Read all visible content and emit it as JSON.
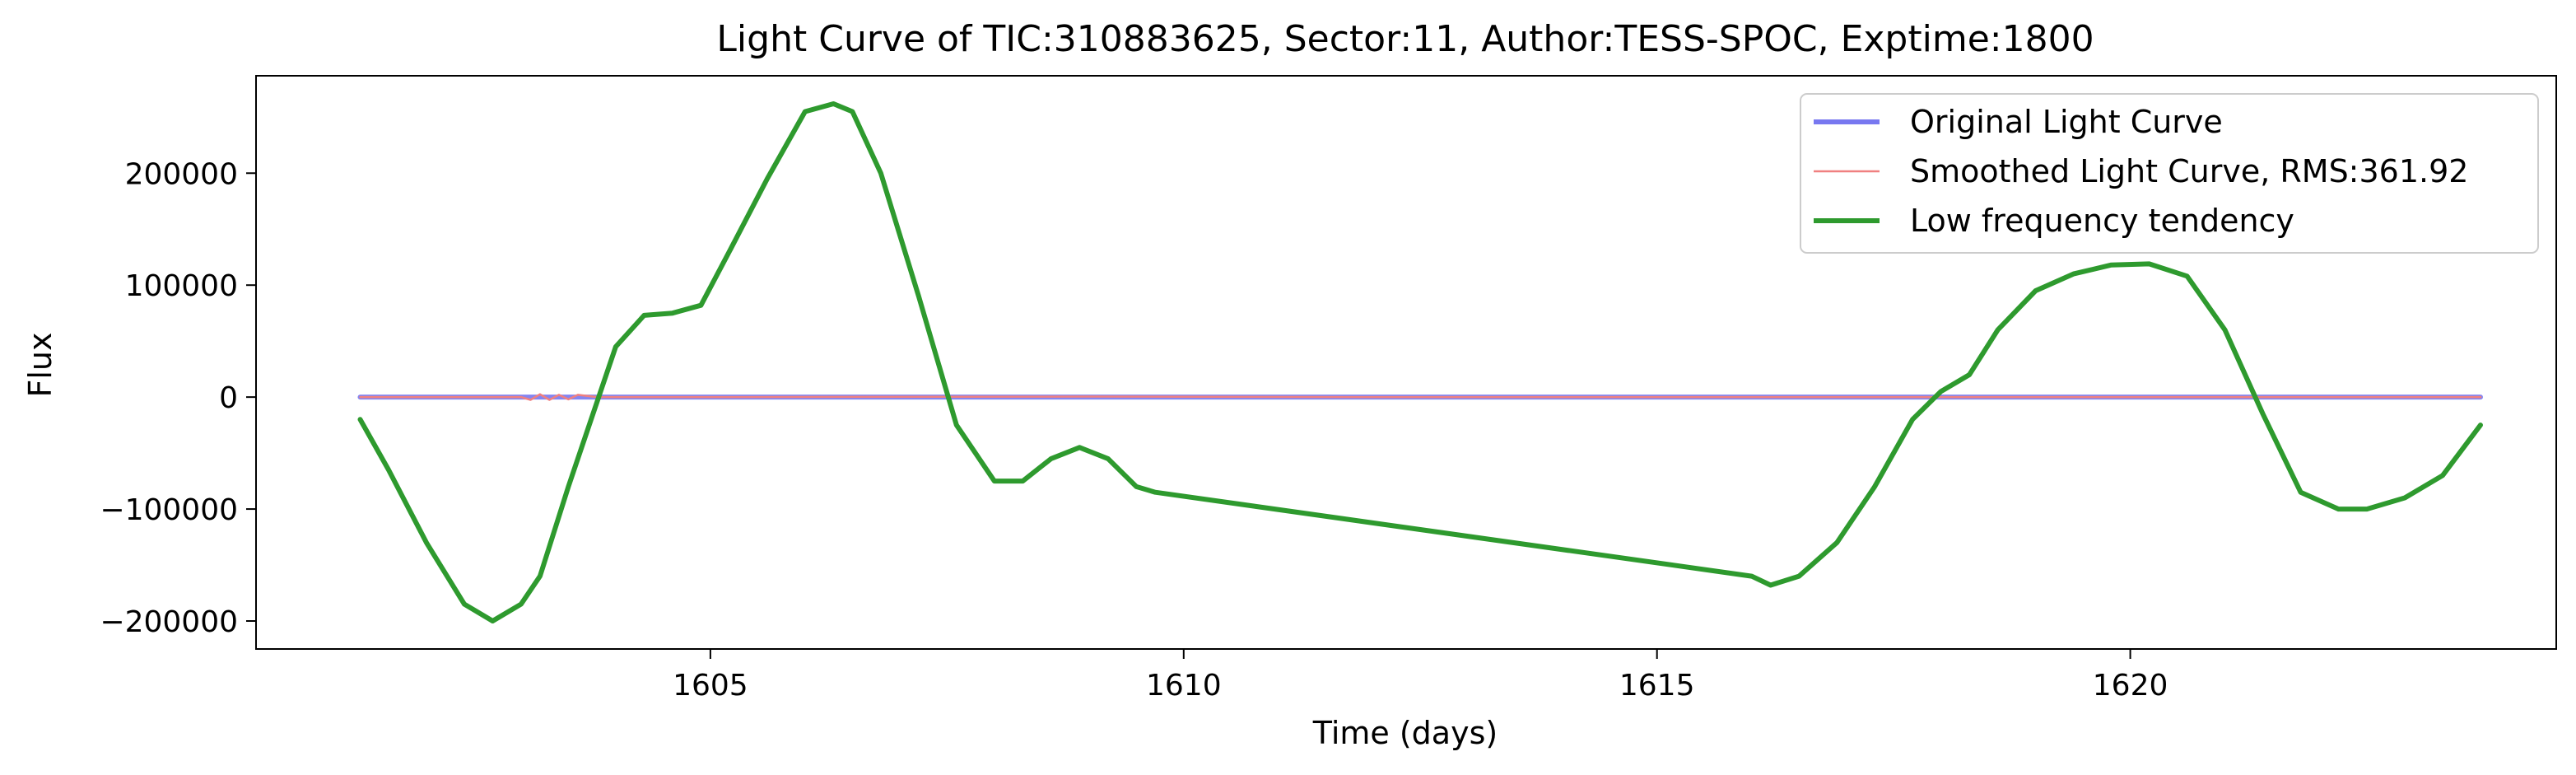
{
  "chart_data": {
    "type": "line",
    "title": "Light Curve of TIC:310883625, Sector:11, Author:TESS-SPOC, Exptime:1800",
    "xlabel": "Time (days)",
    "ylabel": "Flux",
    "xlim": [
      1600.2,
      1624.5
    ],
    "ylim": [
      -225000,
      287000
    ],
    "xticks": [
      1605,
      1610,
      1615,
      1620
    ],
    "xtick_labels": [
      "1605",
      "1610",
      "1615",
      "1620"
    ],
    "yticks": [
      -200000,
      -100000,
      0,
      100000,
      200000
    ],
    "ytick_labels": [
      "−200000",
      "−100000",
      "0",
      "100000",
      "200000"
    ],
    "grid": false,
    "legend_position": "top-right",
    "series": [
      {
        "name": "Original Light Curve",
        "color": "#7878f0",
        "x": [
          1601.3,
          1623.7
        ],
        "y": [
          0,
          0
        ]
      },
      {
        "name": "Smoothed Light Curve, RMS:361.92",
        "color": "#f08080",
        "x": [
          1601.3,
          1602.5,
          1603.0,
          1603.1,
          1603.2,
          1603.3,
          1603.4,
          1603.5,
          1603.6,
          1603.8,
          1604.2,
          1605.0,
          1609.0,
          1612.0,
          1617.0,
          1620.0,
          1623.7
        ],
        "y": [
          0,
          0,
          0,
          -2500,
          2500,
          -2500,
          2000,
          -2000,
          2000,
          0,
          0,
          0,
          500,
          0,
          0,
          0,
          0
        ]
      },
      {
        "name": "Low frequency tendency",
        "color": "#2e9a2e",
        "x": [
          1601.3,
          1601.6,
          1602.0,
          1602.4,
          1602.7,
          1603.0,
          1603.2,
          1603.5,
          1603.8,
          1604.0,
          1604.3,
          1604.6,
          1604.9,
          1605.2,
          1605.6,
          1606.0,
          1606.3,
          1606.5,
          1606.8,
          1607.2,
          1607.6,
          1608.0,
          1608.3,
          1608.6,
          1608.9,
          1609.2,
          1609.5,
          1609.7,
          1616.0,
          1616.2,
          1616.5,
          1616.9,
          1617.3,
          1617.7,
          1618.0,
          1618.3,
          1618.6,
          1619.0,
          1619.4,
          1619.8,
          1620.2,
          1620.6,
          1621.0,
          1621.4,
          1621.8,
          1622.2,
          1622.5,
          1622.9,
          1623.3,
          1623.7
        ],
        "y": [
          -20000,
          -65000,
          -130000,
          -185000,
          -200000,
          -185000,
          -160000,
          -80000,
          -5000,
          45000,
          73000,
          75000,
          82000,
          130000,
          195000,
          255000,
          262000,
          255000,
          200000,
          90000,
          -25000,
          -75000,
          -75000,
          -55000,
          -45000,
          -55000,
          -80000,
          -85000,
          -160000,
          -168000,
          -160000,
          -130000,
          -80000,
          -20000,
          5000,
          20000,
          60000,
          95000,
          110000,
          118000,
          119000,
          108000,
          60000,
          -15000,
          -85000,
          -100000,
          -100000,
          -90000,
          -70000,
          -25000
        ]
      }
    ]
  }
}
